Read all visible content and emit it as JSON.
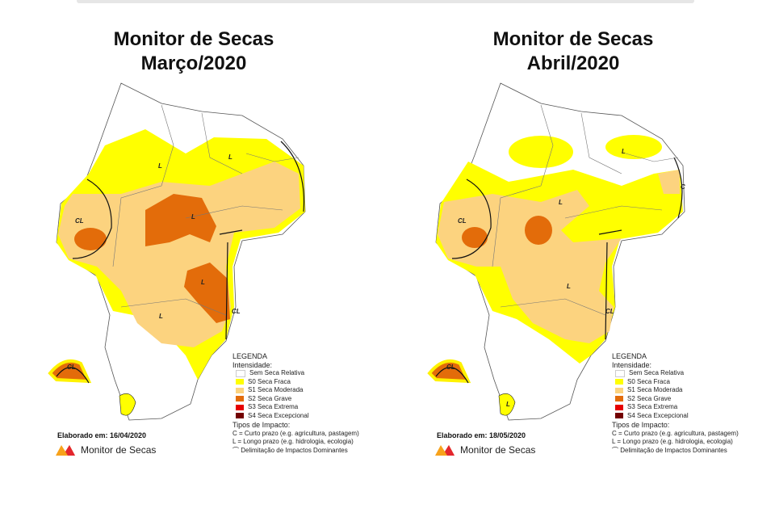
{
  "panels": [
    {
      "title_line1": "Monitor de Secas",
      "title_line2": "Março/2020",
      "elaborado": "Elaborado em: 16/04/2020",
      "map_labels": [
        "L",
        "L",
        "CL",
        "L",
        "L",
        "L",
        "CL",
        "CL"
      ]
    },
    {
      "title_line1": "Monitor de Secas",
      "title_line2": "Abril/2020",
      "elaborado": "Elaborado em: 18/05/2020",
      "map_labels": [
        "L",
        "L",
        "C",
        "CL",
        "L",
        "CL",
        "CL",
        "L"
      ]
    }
  ],
  "legend": {
    "title": "LEGENDA",
    "intensity_title": "Intensidade:",
    "items": [
      {
        "label": "Sem Seca Relativa",
        "color": "#ffffff"
      },
      {
        "label": "S0 Seca Fraca",
        "color": "#ffff00"
      },
      {
        "label": "S1 Seca Moderada",
        "color": "#fcd37f"
      },
      {
        "label": "S2 Seca Grave",
        "color": "#e36c0a"
      },
      {
        "label": "S3 Seca Extrema",
        "color": "#e60000"
      },
      {
        "label": "S4 Seca Excepcional",
        "color": "#730000"
      }
    ],
    "impact_title": "Tipos de Impacto:",
    "impact_c": "C = Curto prazo (e.g. agricultura, pastagem)",
    "impact_l": "L = Longo prazo (e.g. hidrologia, ecologia)",
    "delimitation": "Delimitação de Impactos Dominantes"
  },
  "logo_text": "Monitor de Secas"
}
